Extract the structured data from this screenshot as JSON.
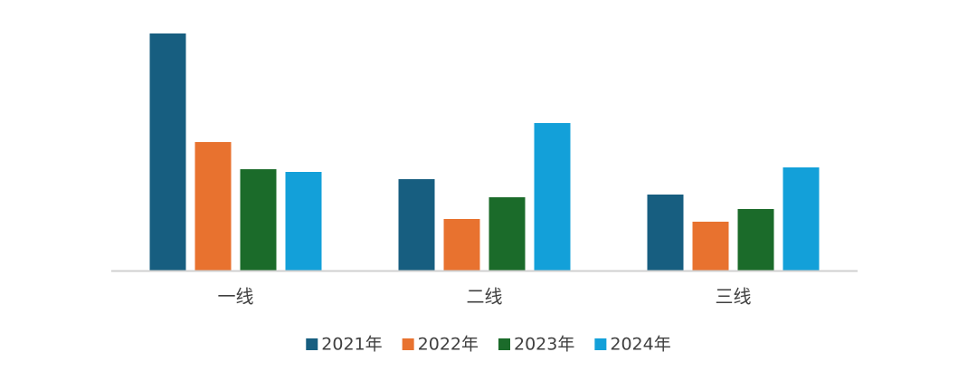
{
  "chart_data": {
    "type": "bar",
    "categories": [
      "一线",
      "二线",
      "三线"
    ],
    "series": [
      {
        "name": "2021年",
        "color": "#175e80",
        "values": [
          262,
          101,
          84
        ]
      },
      {
        "name": "2022年",
        "color": "#e8722f",
        "values": [
          142,
          57,
          54
        ]
      },
      {
        "name": "2023年",
        "color": "#1b6b2a",
        "values": [
          112,
          81,
          68
        ]
      },
      {
        "name": "2024年",
        "color": "#13a0d9",
        "values": [
          109,
          163,
          114
        ]
      }
    ]
  }
}
